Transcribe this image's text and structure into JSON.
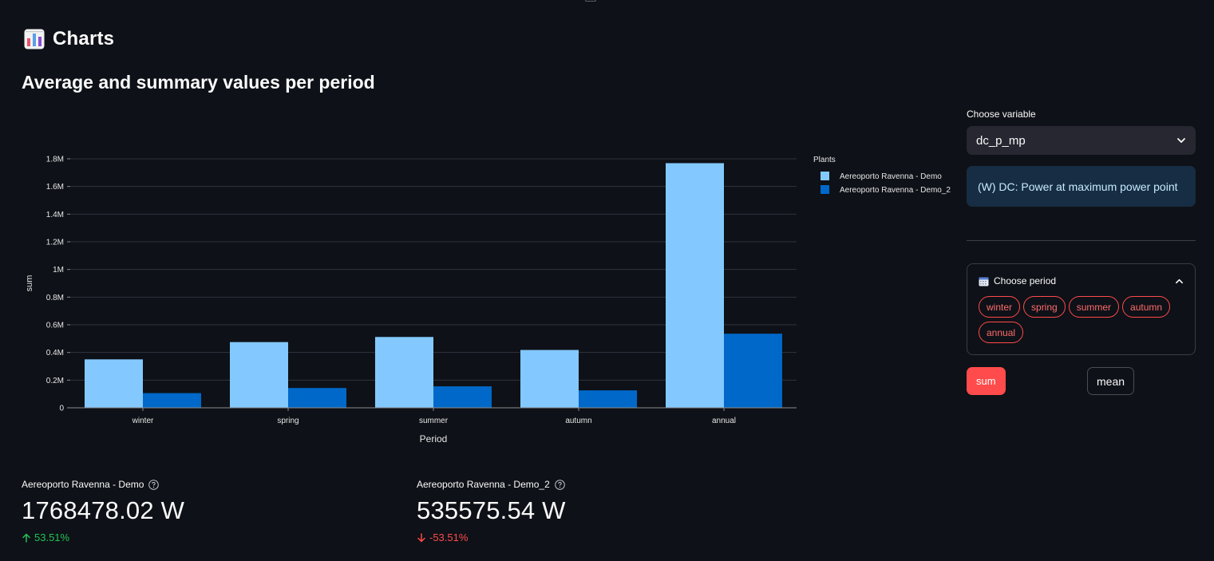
{
  "header": {
    "icon": "bar-chart-icon",
    "title": "Charts"
  },
  "section": {
    "title": "Average and summary values per period"
  },
  "chart_data": {
    "type": "bar",
    "title": "",
    "xlabel": "Period",
    "ylabel": "sum",
    "categories": [
      "winter",
      "spring",
      "summer",
      "autumn",
      "annual"
    ],
    "series": [
      {
        "name": "Aereoporto Ravenna - Demo",
        "values": [
          350000,
          475000,
          512000,
          418000,
          1768478.02
        ],
        "color": "#83c9ff"
      },
      {
        "name": "Aereoporto Ravenna - Demo_2",
        "values": [
          106000,
          143000,
          155000,
          126000,
          535575.54
        ],
        "color": "#0068c9"
      }
    ],
    "ylim": [
      0,
      1800000
    ],
    "yticks": [
      0,
      200000,
      400000,
      600000,
      800000,
      1000000,
      1200000,
      1400000,
      1600000,
      1800000
    ],
    "ytick_labels": [
      "0",
      "0.2M",
      "0.4M",
      "0.6M",
      "0.8M",
      "1M",
      "1.2M",
      "1.4M",
      "1.6M",
      "1.8M"
    ],
    "grid": true,
    "legend_title": "Plants",
    "legend_position": "top-right"
  },
  "controls": {
    "variable_label": "Choose variable",
    "variable_value": "dc_p_mp",
    "variable_info": "(W) DC: Power at maximum power point",
    "period_expander_label": "Choose period",
    "periods": [
      "winter",
      "spring",
      "summer",
      "autumn",
      "annual"
    ],
    "sum_label": "sum",
    "mean_label": "mean"
  },
  "metrics": [
    {
      "label": "Aereoporto Ravenna - Demo",
      "value": "1768478.02 W",
      "delta": "53.51%",
      "direction": "up"
    },
    {
      "label": "Aereoporto Ravenna - Demo_2",
      "value": "535575.54 W",
      "delta": "-53.51%",
      "direction": "down"
    }
  ],
  "colors": {
    "accent": "#ff4b4b",
    "positive": "#21c354",
    "background": "#0e1117"
  }
}
